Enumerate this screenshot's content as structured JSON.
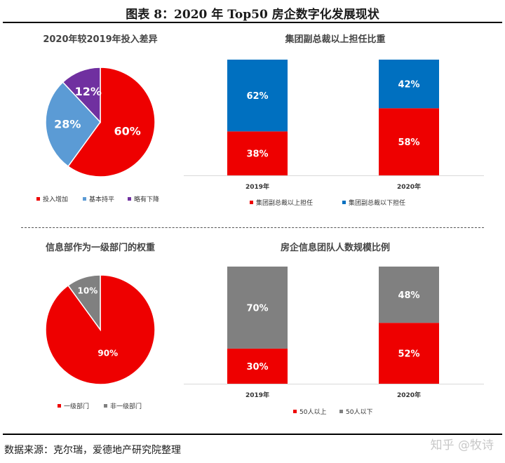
{
  "figure_title": "图表 8：2020 年 Top50 房企数字化发展现状",
  "source": "数据来源：克尔瑞，爱德地产研究院整理",
  "watermark": "知乎 @牧诗",
  "colors": {
    "red": "#ee0000",
    "blue": "#5b9bd5",
    "purple": "#7030a0",
    "darkblue": "#0070c0",
    "gray": "#808080"
  },
  "chart_data": [
    {
      "type": "pie",
      "title": "2020年较2019年投入差异",
      "slices": [
        {
          "name": "投入增加",
          "value": 60,
          "label": "60%",
          "color": "#ee0000"
        },
        {
          "name": "基本持平",
          "value": 28,
          "label": "28%",
          "color": "#5b9bd5"
        },
        {
          "name": "略有下降",
          "value": 12,
          "label": "12%",
          "color": "#7030a0"
        }
      ],
      "legend": [
        "投入增加",
        "基本持平",
        "略有下降"
      ]
    },
    {
      "type": "bar",
      "stacked": true,
      "title": "集团副总裁以上担任比重",
      "categories": [
        "2019年",
        "2020年"
      ],
      "series": [
        {
          "name": "集团副总裁以上担任",
          "values": [
            38,
            58
          ],
          "labels": [
            "38%",
            "58%"
          ],
          "color": "#ee0000"
        },
        {
          "name": "集团副总裁以下担任",
          "values": [
            62,
            42
          ],
          "labels": [
            "62%",
            "42%"
          ],
          "color": "#0070c0"
        }
      ],
      "ylim": [
        0,
        100
      ]
    },
    {
      "type": "pie",
      "title": "信息部作为一级部门的权重",
      "slices": [
        {
          "name": "一级部门",
          "value": 90,
          "label": "90%",
          "color": "#ee0000"
        },
        {
          "name": "非一级部门",
          "value": 10,
          "label": "10%",
          "color": "#808080"
        }
      ],
      "legend": [
        "一级部门",
        "非一级部门"
      ]
    },
    {
      "type": "bar",
      "stacked": true,
      "title": "房企信息团队人数规模比例",
      "categories": [
        "2019年",
        "2020年"
      ],
      "series": [
        {
          "name": "50人以上",
          "values": [
            30,
            52
          ],
          "labels": [
            "30%",
            "52%"
          ],
          "color": "#ee0000"
        },
        {
          "name": "50人以下",
          "values": [
            70,
            48
          ],
          "labels": [
            "70%",
            "48%"
          ],
          "color": "#808080"
        }
      ],
      "ylim": [
        0,
        100
      ]
    }
  ]
}
